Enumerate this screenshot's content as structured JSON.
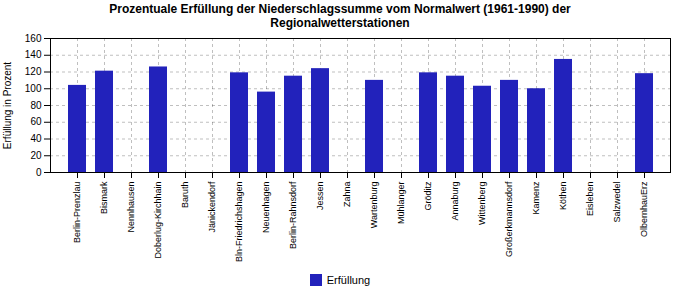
{
  "chart_data": {
    "type": "bar",
    "title": "Prozentuale Erfüllung der Niederschlagssumme vom Normalwert (1961-1990) der\nRegionalwetterstationen",
    "ylabel": "Erfüllung in Prozent",
    "categories": [
      "Berlin-Prenzlau",
      "Bismark",
      "Nennhausen",
      "Doberlug-Kirchhain",
      "Baruth",
      "Jänickendorf",
      "Bln-Friedrichshagen",
      "Neuenhagen",
      "Berlin-Rahnsdorf",
      "Jessen",
      "Zahna",
      "Wartenburg",
      "Mühlanger",
      "Gröditz",
      "Annaburg",
      "Wittenberg",
      "Großerkmannsdorf",
      "Kamenz",
      "Köthen",
      "Eisleben",
      "Salzwedel",
      "OlbernhauErz"
    ],
    "series": [
      {
        "name": "Erfüllung",
        "color": "#2222bb",
        "values": [
          104,
          121,
          0,
          126,
          0,
          0,
          119,
          96,
          115,
          124,
          0,
          110,
          0,
          119,
          115,
          103,
          110,
          100,
          135,
          0,
          0,
          118
        ]
      }
    ],
    "ylim": [
      0,
      160
    ],
    "yticks": [
      0,
      20,
      40,
      60,
      80,
      100,
      120,
      140,
      160
    ],
    "grid": true,
    "legend": "bottom"
  }
}
